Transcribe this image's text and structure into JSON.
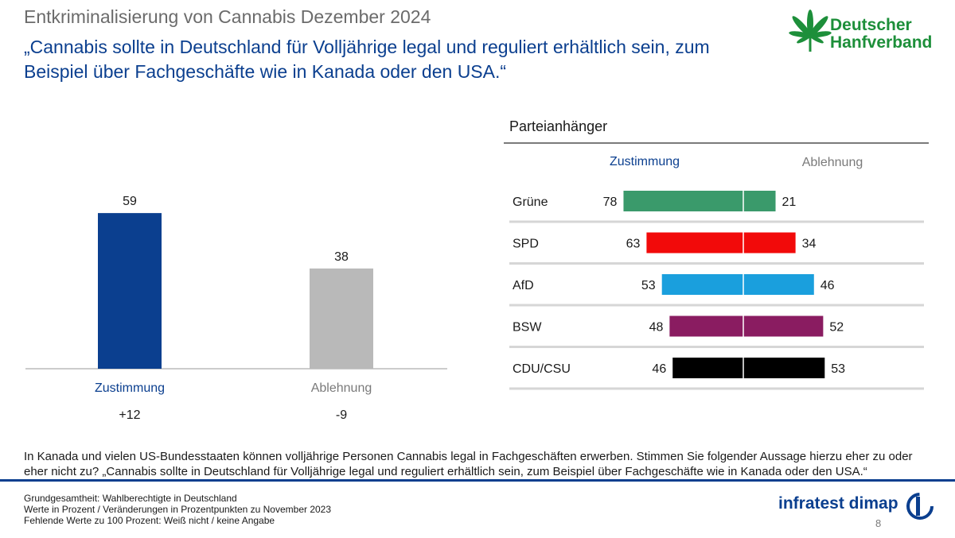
{
  "header": {
    "title": "Entkriminalisierung von Cannabis Dezember 2024",
    "quote": "„Cannabis sollte in Deutschland für Volljährige legal und reguliert erhältlich sein, zum Beispiel über Fachgeschäfte wie in Kanada oder den USA.“"
  },
  "logo_hanfverband": {
    "line1": "Deutscher",
    "line2": "Hanfverband",
    "color": "#1d8f3a",
    "icon": "cannabis-leaf-icon"
  },
  "logo_infratest": {
    "text": "infratest dimap",
    "color": "#0b3f8f",
    "icon": "dimap-ring-icon"
  },
  "chart_data": [
    {
      "type": "bar",
      "categories": [
        "Zustimmung",
        "Ablehnung"
      ],
      "values": [
        59,
        38
      ],
      "changes": [
        "+12",
        "-9"
      ],
      "colors": [
        "#0b3f8f",
        "#b9b9b9"
      ],
      "label_colors": [
        "#0b3f8f",
        "#7a7a7a"
      ],
      "ylim": [
        0,
        100
      ]
    },
    {
      "type": "bar",
      "orientation": "diverging-horizontal",
      "title": "Parteianhänger",
      "column_headers": [
        "Zustimmung",
        "Ablehnung"
      ],
      "categories": [
        "Grüne",
        "SPD",
        "AfD",
        "BSW",
        "CDU/CSU"
      ],
      "series": [
        {
          "name": "Zustimmung",
          "values": [
            78,
            63,
            53,
            48,
            46
          ]
        },
        {
          "name": "Ablehnung",
          "values": [
            21,
            34,
            46,
            52,
            53
          ]
        }
      ],
      "colors": [
        "#3a9a6b",
        "#f20a0a",
        "#1a9fdd",
        "#8a1c61",
        "#000000"
      ]
    }
  ],
  "question": "In Kanada und vielen US-Bundesstaaten können volljährige Personen Cannabis legal in Fachgeschäften erwerben. Stimmen Sie folgender Aussage hierzu eher zu oder eher nicht zu? „Cannabis sollte in Deutschland für Volljährige legal und reguliert erhältlich sein, zum Beispiel über Fachgeschäfte wie in Kanada oder den USA.“",
  "footnotes": [
    "Grundgesamtheit: Wahlberechtigte in Deutschland",
    "Werte in Prozent / Veränderungen in Prozentpunkten zu November 2023",
    "Fehlende Werte zu 100 Prozent: Weiß nicht / keine Angabe"
  ],
  "page_number": "8"
}
